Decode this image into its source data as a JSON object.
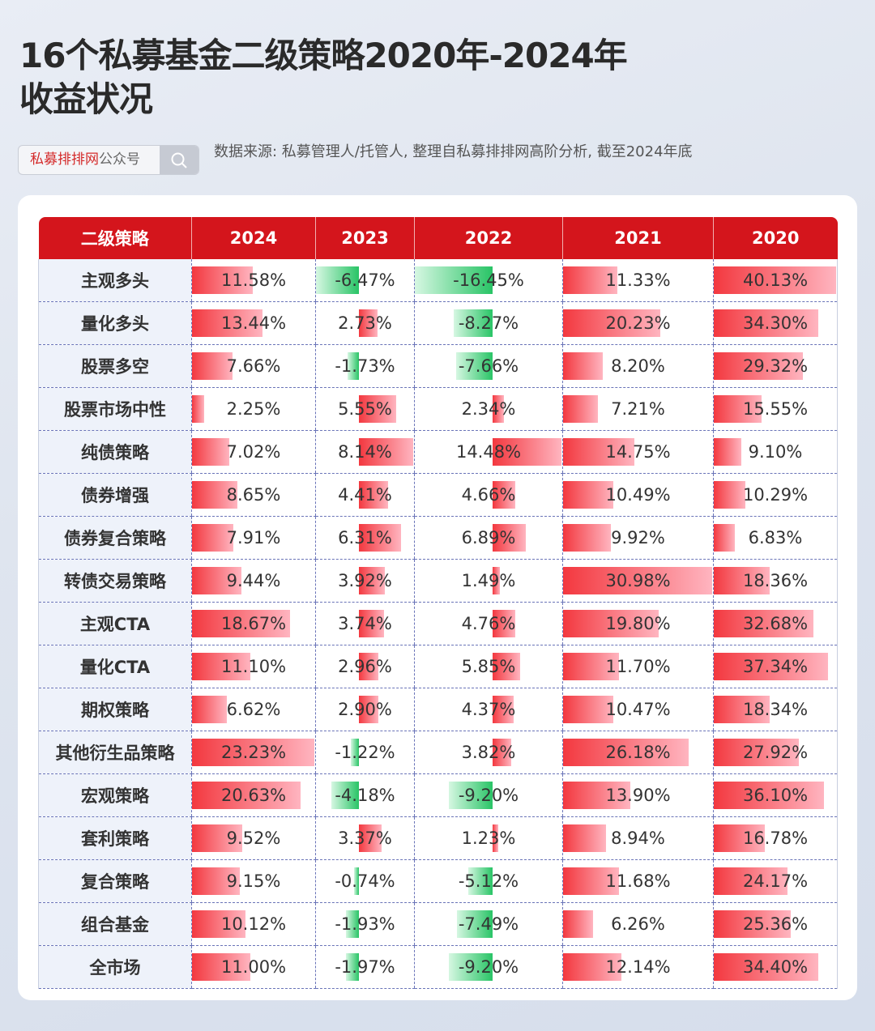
{
  "title_line1": "16个私募基金二级策略2020年-2024年",
  "title_line2": "收益状况",
  "search": {
    "brand": "私募排排网",
    "suffix": "公众号",
    "icon": "search-icon"
  },
  "source": "数据来源: 私募管理人/托管人, 整理自私募排排网高阶分析, 截至2024年底",
  "colors": {
    "header": "#d4151c",
    "positive": "#f3383f",
    "negative": "#29c466"
  },
  "table": {
    "headers": [
      "二级策略",
      "2024",
      "2023",
      "2022",
      "2021",
      "2020"
    ],
    "rows": [
      {
        "name": "主观多头",
        "values": [
          11.58,
          -6.47,
          -16.45,
          11.33,
          40.13
        ]
      },
      {
        "name": "量化多头",
        "values": [
          13.44,
          2.73,
          -8.27,
          20.23,
          34.3
        ]
      },
      {
        "name": "股票多空",
        "values": [
          7.66,
          -1.73,
          -7.66,
          8.2,
          29.32
        ]
      },
      {
        "name": "股票市场中性",
        "values": [
          2.25,
          5.55,
          2.34,
          7.21,
          15.55
        ]
      },
      {
        "name": "纯债策略",
        "values": [
          7.02,
          8.14,
          14.48,
          14.75,
          9.1
        ]
      },
      {
        "name": "债券增强",
        "values": [
          8.65,
          4.41,
          4.66,
          10.49,
          10.29
        ]
      },
      {
        "name": "债券复合策略",
        "values": [
          7.91,
          6.31,
          6.89,
          9.92,
          6.83
        ]
      },
      {
        "name": "转债交易策略",
        "values": [
          9.44,
          3.92,
          1.49,
          30.98,
          18.36
        ]
      },
      {
        "name": "主观CTA",
        "values": [
          18.67,
          3.74,
          4.76,
          19.8,
          32.68
        ]
      },
      {
        "name": "量化CTA",
        "values": [
          11.1,
          2.96,
          5.85,
          11.7,
          37.34
        ]
      },
      {
        "name": "期权策略",
        "values": [
          6.62,
          2.9,
          4.37,
          10.47,
          18.34
        ]
      },
      {
        "name": "其他衍生品策略",
        "values": [
          23.23,
          -1.22,
          3.82,
          26.18,
          27.92
        ]
      },
      {
        "name": "宏观策略",
        "values": [
          20.63,
          -4.18,
          -9.2,
          13.9,
          36.1
        ]
      },
      {
        "name": "套利策略",
        "values": [
          9.52,
          3.37,
          1.23,
          8.94,
          16.78
        ]
      },
      {
        "name": "复合策略",
        "values": [
          9.15,
          -0.74,
          -5.12,
          11.68,
          24.17
        ]
      },
      {
        "name": "组合基金",
        "values": [
          10.12,
          -1.93,
          -7.49,
          6.26,
          25.36
        ]
      },
      {
        "name": "全市场",
        "values": [
          11.0,
          -1.97,
          -9.2,
          12.14,
          34.4
        ]
      }
    ]
  }
}
